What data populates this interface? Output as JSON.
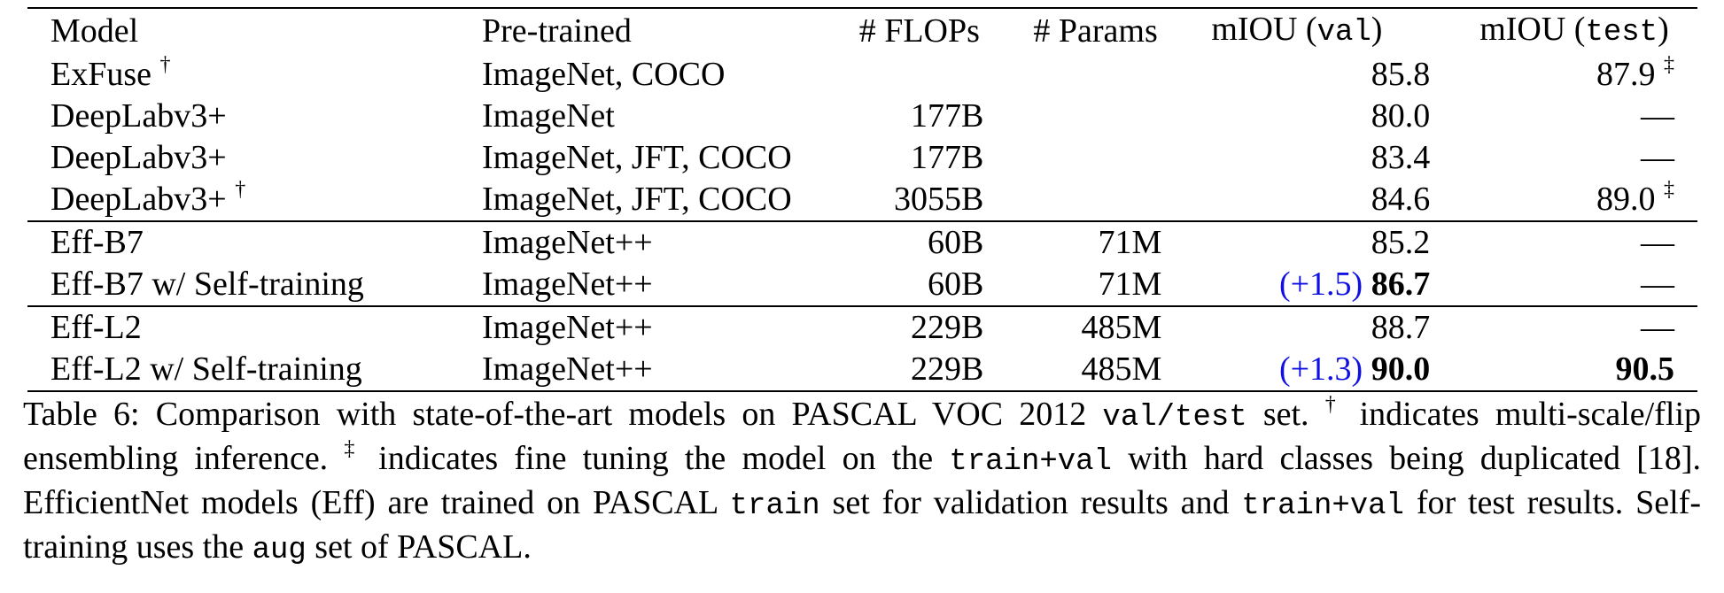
{
  "table": {
    "headers": {
      "model": "Model",
      "pretrained": "Pre-trained",
      "flops": "# FLOPs",
      "params": "# Params",
      "val_prefix": "mIOU (",
      "val_code": "val",
      "val_suffix": ")",
      "test_prefix": "mIOU (",
      "test_code": "test",
      "test_suffix": ")"
    },
    "rows": [
      {
        "model": "ExFuse",
        "model_mark": "†",
        "pretrained": "ImageNet, COCO",
        "flops": "",
        "params": "",
        "val_gain": "",
        "val": "85.8",
        "test": "87.9",
        "test_mark": "‡"
      },
      {
        "model": "DeepLabv3+",
        "model_mark": "",
        "pretrained": "ImageNet",
        "flops": "177B",
        "params": "",
        "val_gain": "",
        "val": "80.0",
        "test": "—",
        "test_mark": ""
      },
      {
        "model": "DeepLabv3+",
        "model_mark": "",
        "pretrained": "ImageNet, JFT, COCO",
        "flops": "177B",
        "params": "",
        "val_gain": "",
        "val": "83.4",
        "test": "—",
        "test_mark": ""
      },
      {
        "model": "DeepLabv3+",
        "model_mark": "†",
        "pretrained": "ImageNet, JFT, COCO",
        "flops": "3055B",
        "params": "",
        "val_gain": "",
        "val": "84.6",
        "test": "89.0",
        "test_mark": "‡"
      },
      {
        "model": "Eff-B7",
        "model_mark": "",
        "pretrained": "ImageNet++",
        "flops": "60B",
        "params": "71M",
        "val_gain": "",
        "val": "85.2",
        "test": "—",
        "test_mark": ""
      },
      {
        "model": "Eff-B7 w/ Self-training",
        "model_mark": "",
        "pretrained": "ImageNet++",
        "flops": "60B",
        "params": "71M",
        "val_gain": "(+1.5)",
        "val": "86.7",
        "test": "—",
        "test_mark": ""
      },
      {
        "model": "Eff-L2",
        "model_mark": "",
        "pretrained": "ImageNet++",
        "flops": "229B",
        "params": "485M",
        "val_gain": "",
        "val": "88.7",
        "test": "—",
        "test_mark": ""
      },
      {
        "model": "Eff-L2 w/ Self-training",
        "model_mark": "",
        "pretrained": "ImageNet++",
        "flops": "229B",
        "params": "485M",
        "val_gain": "(+1.3)",
        "val": "90.0",
        "test": "90.5",
        "test_mark": ""
      }
    ]
  },
  "caption": {
    "p1": "Table 6: Comparison with state-of-the-art models on PASCAL VOC 2012 ",
    "c1": "val/test",
    "p2": " set. ",
    "m1": "†",
    "p3": " indicates multi-scale/flip ensembling inference. ",
    "m2": "‡",
    "p4": " indicates fine tuning the model on the ",
    "c2": "train+val",
    "p5": " with hard classes being duplicated [18]. EfficientNet models (Eff) are trained on PASCAL ",
    "c3": "train",
    "p6": " set for validation results and ",
    "c4": "train+val",
    "p7": " for test results. Self-training uses the ",
    "c5": "aug",
    "p8": " set of PASCAL."
  },
  "colors": {
    "gain": "#1010e0"
  }
}
